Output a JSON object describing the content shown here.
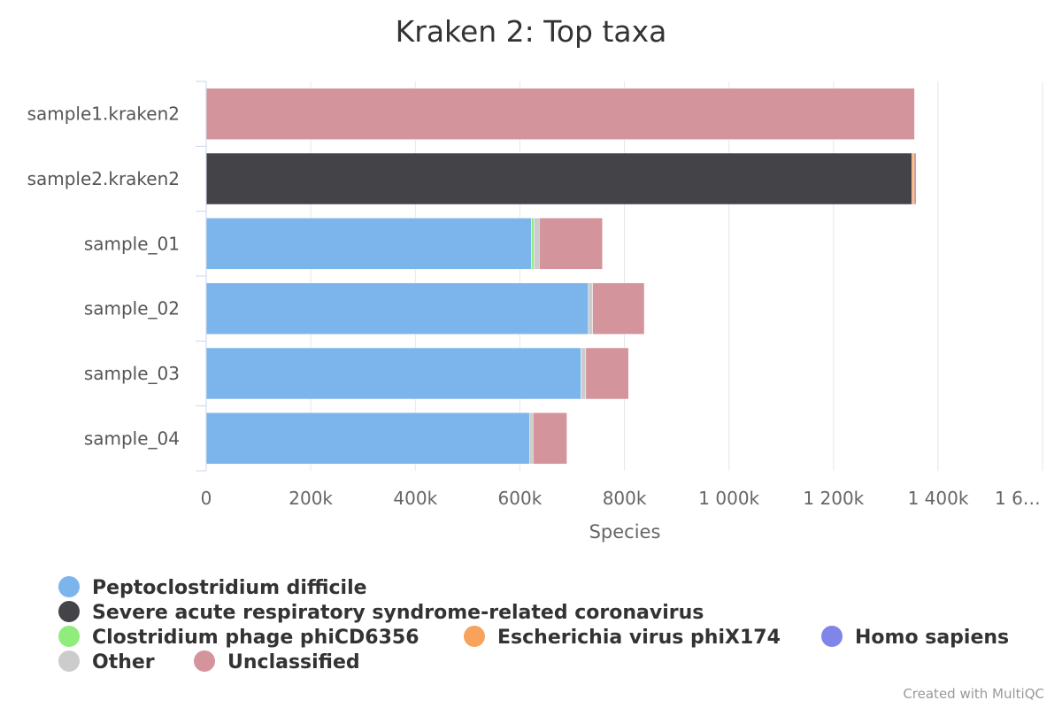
{
  "chart_data": {
    "type": "bar",
    "orientation": "horizontal",
    "stacked": true,
    "title": "Kraken 2: Top taxa",
    "xlabel": "Species",
    "ylabel": "",
    "xlim": [
      0,
      1600000
    ],
    "tick_values": [
      0,
      200000,
      400000,
      600000,
      800000,
      1000000,
      1200000,
      1400000,
      1600000
    ],
    "tick_labels": [
      "0",
      "200k",
      "400k",
      "600k",
      "800k",
      "1 000k",
      "1 200k",
      "1 400k",
      "1 6…"
    ],
    "grid": true,
    "legend_position": "bottom",
    "categories": [
      "sample1.kraken2",
      "sample2.kraken2",
      "sample_01",
      "sample_02",
      "sample_03",
      "sample_04"
    ],
    "series": [
      {
        "name": "Peptoclostridium difficile",
        "color": "#7cb5ec",
        "values": [
          0,
          0,
          622000,
          731000,
          717000,
          619000
        ]
      },
      {
        "name": "Severe acute respiratory syndrome-related coronavirus",
        "color": "#434348",
        "values": [
          0,
          1350000,
          0,
          0,
          0,
          0
        ]
      },
      {
        "name": "Clostridium phage phiCD6356",
        "color": "#90ed7d",
        "values": [
          0,
          0,
          5000,
          0,
          0,
          0
        ]
      },
      {
        "name": "Escherichia virus phiX174",
        "color": "#f7a35c",
        "values": [
          0,
          4000,
          0,
          0,
          0,
          0
        ]
      },
      {
        "name": "Homo sapiens",
        "color": "#8085e9",
        "values": [
          0,
          0,
          0,
          0,
          0,
          0
        ]
      },
      {
        "name": "Other",
        "color": "#cccccc",
        "values": [
          0,
          0,
          10000,
          8000,
          9000,
          6000
        ]
      },
      {
        "name": "Unclassified",
        "color": "#d4949b",
        "values": [
          1355000,
          4000,
          121000,
          99000,
          82000,
          65000
        ]
      }
    ]
  },
  "credit": "Created with MultiQC"
}
